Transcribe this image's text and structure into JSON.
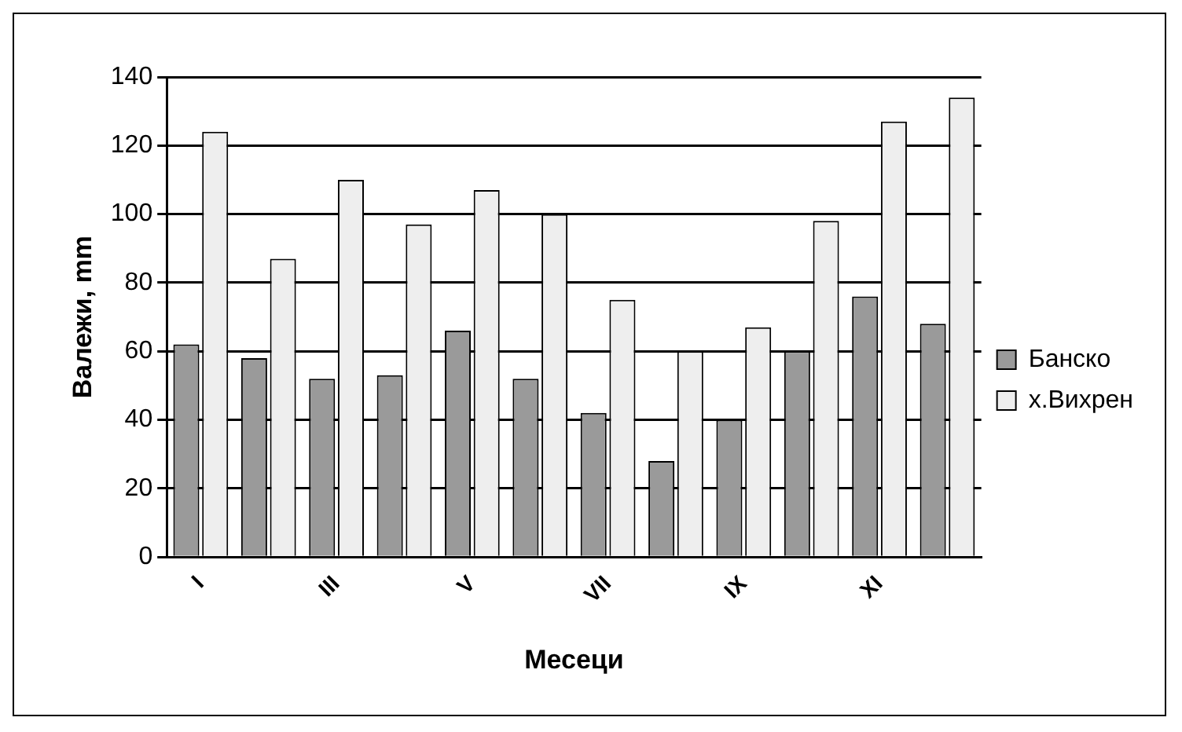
{
  "chart_data": {
    "type": "bar",
    "xlabel": "Месеци",
    "ylabel": "Валежи, mm",
    "categories": [
      "I",
      null,
      "III",
      null,
      "V",
      null,
      "VII",
      null,
      "IX",
      null,
      "XI",
      null
    ],
    "series": [
      {
        "name": "Банско",
        "color": "#9a9a9a",
        "values": [
          62,
          58,
          52,
          53,
          66,
          52,
          42,
          28,
          40,
          60,
          76,
          68
        ]
      },
      {
        "name": "х.Вихрен",
        "color": "#eeeeee",
        "values": [
          124,
          87,
          110,
          97,
          107,
          100,
          75,
          60,
          67,
          98,
          127,
          134
        ]
      }
    ],
    "ylim": [
      0,
      140
    ],
    "yticks": [
      0,
      20,
      40,
      60,
      80,
      100,
      120,
      140
    ],
    "grid": "y",
    "legend": "right"
  }
}
